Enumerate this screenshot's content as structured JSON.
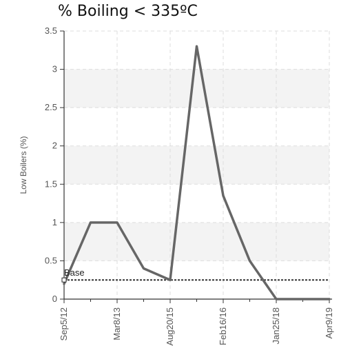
{
  "chart_data": {
    "type": "line",
    "title": "% Boiling < 335ºC",
    "ylabel": "Low Boilers (%)",
    "xlabel": "",
    "ylim": [
      0,
      3.5
    ],
    "yticks": [
      0,
      0.5,
      1,
      1.5,
      2,
      2.5,
      3,
      3.5
    ],
    "xticks": [
      "Sep5/12",
      "Mar8/13",
      "Aug20/15",
      "Feb16/16",
      "Jan25/18",
      "Apr9/19"
    ],
    "series": [
      {
        "values": [
          0.2,
          1.0,
          1.0,
          0.4,
          0.25,
          3.3,
          1.35,
          0.5,
          0.0,
          0.0,
          0.0
        ],
        "color": "#666666"
      }
    ],
    "baseline": {
      "label": "Base",
      "value": 0.25,
      "color": "#333333",
      "style": "dotted"
    },
    "grid": true,
    "bands": "alternating light gray horizontal bands between y ticks"
  }
}
